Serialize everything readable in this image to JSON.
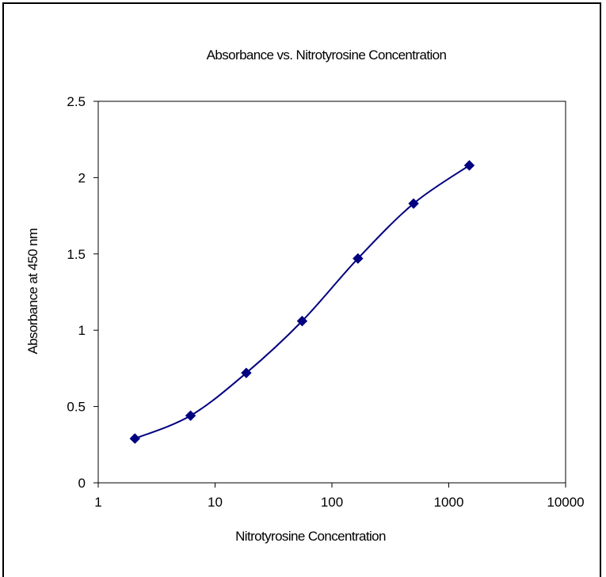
{
  "chart_data": {
    "type": "scatter",
    "title": "Absorbance vs. Nitrotyrosine Concentration",
    "xlabel": "Nitrotyrosine Concentration",
    "ylabel": "Absorbance at 450 nm",
    "x_scale": "log",
    "xlim": [
      1,
      10000
    ],
    "ylim": [
      0,
      2.5
    ],
    "x_ticks": [
      1,
      10,
      100,
      1000,
      10000
    ],
    "x_tick_labels": [
      "1",
      "10",
      "100",
      "1000",
      "10000"
    ],
    "y_ticks": [
      0,
      0.5,
      1,
      1.5,
      2,
      2.5
    ],
    "y_tick_labels": [
      "0",
      "0.5",
      "1",
      "1.5",
      "2",
      "2.5"
    ],
    "grid": false,
    "legend": "none",
    "series": [
      {
        "x": [
          2.06,
          6.17,
          18.5,
          55.6,
          167,
          500,
          1500
        ],
        "y": [
          0.29,
          0.44,
          0.72,
          1.06,
          1.47,
          1.83,
          2.08
        ],
        "color": "#000080",
        "marker": "diamond",
        "line": "smooth"
      }
    ]
  }
}
